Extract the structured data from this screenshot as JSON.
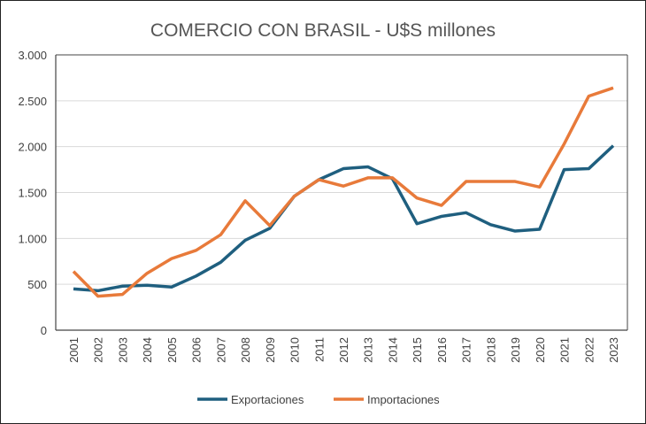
{
  "chart_data": {
    "type": "line",
    "title": "COMERCIO CON BRASIL - U$S millones",
    "xlabel": "",
    "ylabel": "",
    "ylim": [
      0,
      3000
    ],
    "yticks": [
      0,
      500,
      1000,
      1500,
      2000,
      2500,
      3000
    ],
    "ytick_labels": [
      "0",
      "500",
      "1.000",
      "1.500",
      "2.000",
      "2.500",
      "3.000"
    ],
    "grid": true,
    "legend": "bottom",
    "categories": [
      "2001",
      "2002",
      "2003",
      "2004",
      "2005",
      "2006",
      "2007",
      "2008",
      "2009",
      "2010",
      "2011",
      "2012",
      "2013",
      "2014",
      "2015",
      "2016",
      "2017",
      "2018",
      "2019",
      "2020",
      "2021",
      "2022",
      "2023"
    ],
    "series": [
      {
        "name": "Exportaciones",
        "color": "#1f5f7f",
        "values": [
          450,
          430,
          480,
          490,
          470,
          590,
          740,
          980,
          1110,
          1460,
          1640,
          1760,
          1780,
          1650,
          1160,
          1240,
          1280,
          1150,
          1080,
          1100,
          1750,
          1760,
          2010
        ]
      },
      {
        "name": "Importaciones",
        "color": "#e87a3a",
        "values": [
          640,
          370,
          390,
          620,
          780,
          870,
          1040,
          1410,
          1140,
          1460,
          1640,
          1570,
          1660,
          1660,
          1440,
          1360,
          1620,
          1620,
          1620,
          1560,
          2030,
          2550,
          2640
        ]
      }
    ]
  }
}
